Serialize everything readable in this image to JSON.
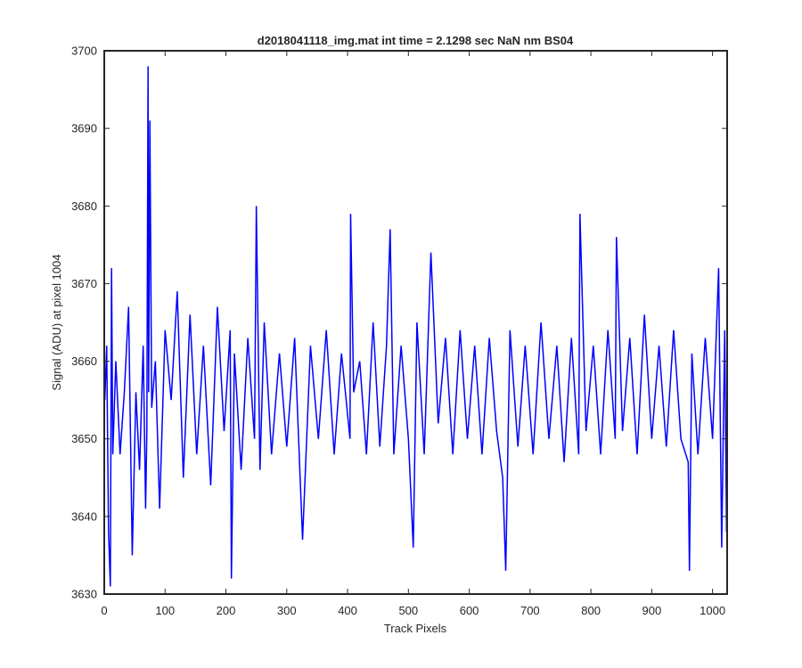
{
  "chart_data": {
    "type": "line",
    "title": "d2018041118_img.mat int time = 2.1298 sec  NaN nm BS04",
    "xlabel": "Track Pixels",
    "ylabel": "Signal (ADU) at pixel 1004",
    "xlim": [
      0,
      1024
    ],
    "ylim": [
      3630,
      3700
    ],
    "xticks": [
      0,
      100,
      200,
      300,
      400,
      500,
      600,
      700,
      800,
      900,
      1000
    ],
    "yticks": [
      3630,
      3640,
      3650,
      3660,
      3670,
      3680,
      3690,
      3700
    ],
    "grid": false,
    "legend": "none",
    "line_color": "#0000ff",
    "series": [
      {
        "x": [
          1,
          4,
          7,
          10,
          12,
          14,
          19,
          26,
          33,
          40,
          46,
          52,
          58,
          64,
          68,
          70,
          72,
          73,
          75,
          78,
          84,
          91,
          100,
          110,
          120,
          130,
          141,
          152,
          163,
          175,
          186,
          197,
          207,
          209,
          214,
          225,
          236,
          247,
          250,
          256,
          263,
          275,
          288,
          300,
          313,
          326,
          339,
          352,
          365,
          378,
          390,
          404,
          405,
          410,
          420,
          431,
          442,
          453,
          464,
          470,
          476,
          488,
          500,
          508,
          514,
          526,
          537,
          549,
          561,
          573,
          585,
          597,
          609,
          621,
          633,
          645,
          655,
          660,
          667,
          680,
          692,
          705,
          718,
          731,
          744,
          756,
          768,
          780,
          782,
          792,
          804,
          816,
          828,
          840,
          842,
          852,
          864,
          876,
          888,
          900,
          912,
          924,
          936,
          948,
          960,
          962,
          966,
          976,
          988,
          1000,
          1010,
          1015,
          1020,
          1023
        ],
        "y": [
          3655,
          3662,
          3638,
          3631,
          3672,
          3648,
          3660,
          3648,
          3656,
          3667,
          3635,
          3656,
          3646,
          3662,
          3641,
          3651,
          3698,
          3656,
          3691,
          3654,
          3660,
          3641,
          3664,
          3655,
          3669,
          3645,
          3666,
          3648,
          3662,
          3644,
          3667,
          3651,
          3664,
          3632,
          3661,
          3646,
          3663,
          3650,
          3680,
          3646,
          3665,
          3648,
          3661,
          3649,
          3663,
          3637,
          3662,
          3650,
          3664,
          3648,
          3661,
          3650,
          3679,
          3656,
          3660,
          3648,
          3665,
          3649,
          3662,
          3677,
          3648,
          3662,
          3650,
          3636,
          3665,
          3648,
          3674,
          3652,
          3663,
          3648,
          3664,
          3650,
          3662,
          3648,
          3663,
          3651,
          3645,
          3633,
          3664,
          3649,
          3662,
          3648,
          3665,
          3650,
          3662,
          3647,
          3663,
          3648,
          3679,
          3651,
          3662,
          3648,
          3664,
          3650,
          3676,
          3651,
          3663,
          3648,
          3666,
          3650,
          3662,
          3649,
          3664,
          3650,
          3647,
          3633,
          3661,
          3648,
          3663,
          3650,
          3672,
          3636,
          3664,
          3638
        ]
      }
    ]
  }
}
